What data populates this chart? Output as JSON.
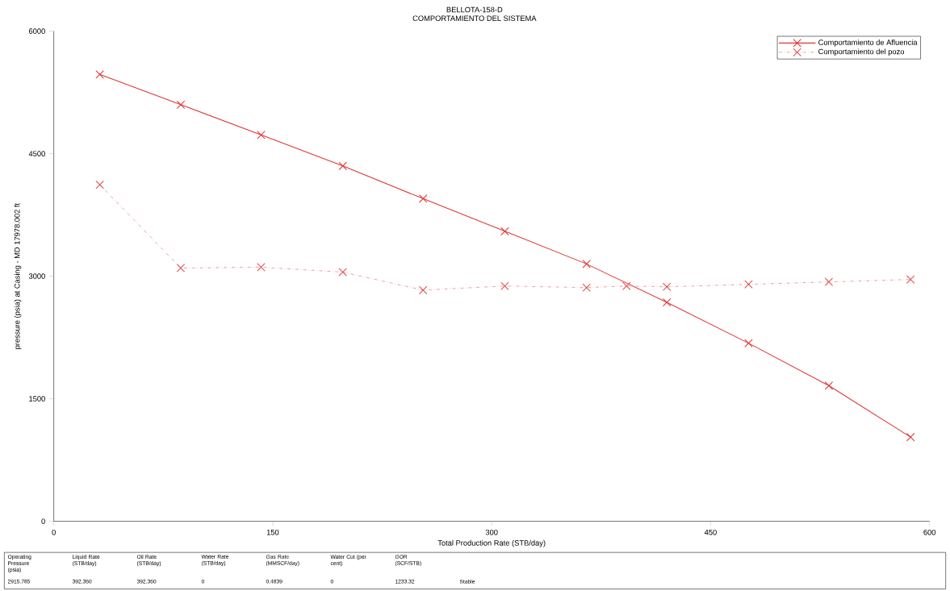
{
  "chart_data": {
    "type": "line",
    "title": "BELLOTA-158-D",
    "subtitle": "COMPORTAMIENTO DEL SISTEMA",
    "xlabel": "Total Production Rate (STB/day)",
    "ylabel": "pressure (psia) at Casing - MD 17978.002 ft",
    "xlim": [
      0,
      600
    ],
    "xticks": [
      0,
      150,
      300,
      450,
      600
    ],
    "ylim": [
      0,
      6000
    ],
    "yticks": [
      0,
      1500,
      3000,
      4500,
      6000
    ],
    "grid": false,
    "legend": "top right",
    "marker": "cross",
    "series": [
      {
        "name": "Comportamiento de Afluencia",
        "color": "#e03535",
        "line_style": "solid",
        "x": [
          31.5,
          87,
          142,
          198,
          253,
          309,
          365,
          420,
          476,
          531,
          587
        ],
        "values": [
          5470,
          5100,
          4730,
          4350,
          3950,
          3550,
          3150,
          2680,
          2180,
          1660,
          1030
        ]
      },
      {
        "name": "Comportamiento del pozo",
        "color": "#e35050",
        "line_style": "dashed",
        "x": [
          31.5,
          87,
          142,
          198,
          253,
          309,
          365,
          392.4,
          420,
          476,
          531,
          587
        ],
        "values": [
          4120,
          3100,
          3110,
          3050,
          2830,
          2880,
          2860,
          2880,
          2870,
          2900,
          2930,
          2960
        ]
      }
    ],
    "annotations": [
      "Operating Pressure (psia)",
      "2915.785",
      "Liquid Rate (STB/day)",
      "392.360",
      "Oil Rate (STB/day)",
      "392.360",
      "Water Rate (STB/day)",
      "0",
      "Gas Rate (MMSCF/day)",
      "0.4839",
      "Water Cut (per cent)",
      "0",
      "GOR (SCF/STB)",
      "1233.32",
      "Stable"
    ]
  }
}
